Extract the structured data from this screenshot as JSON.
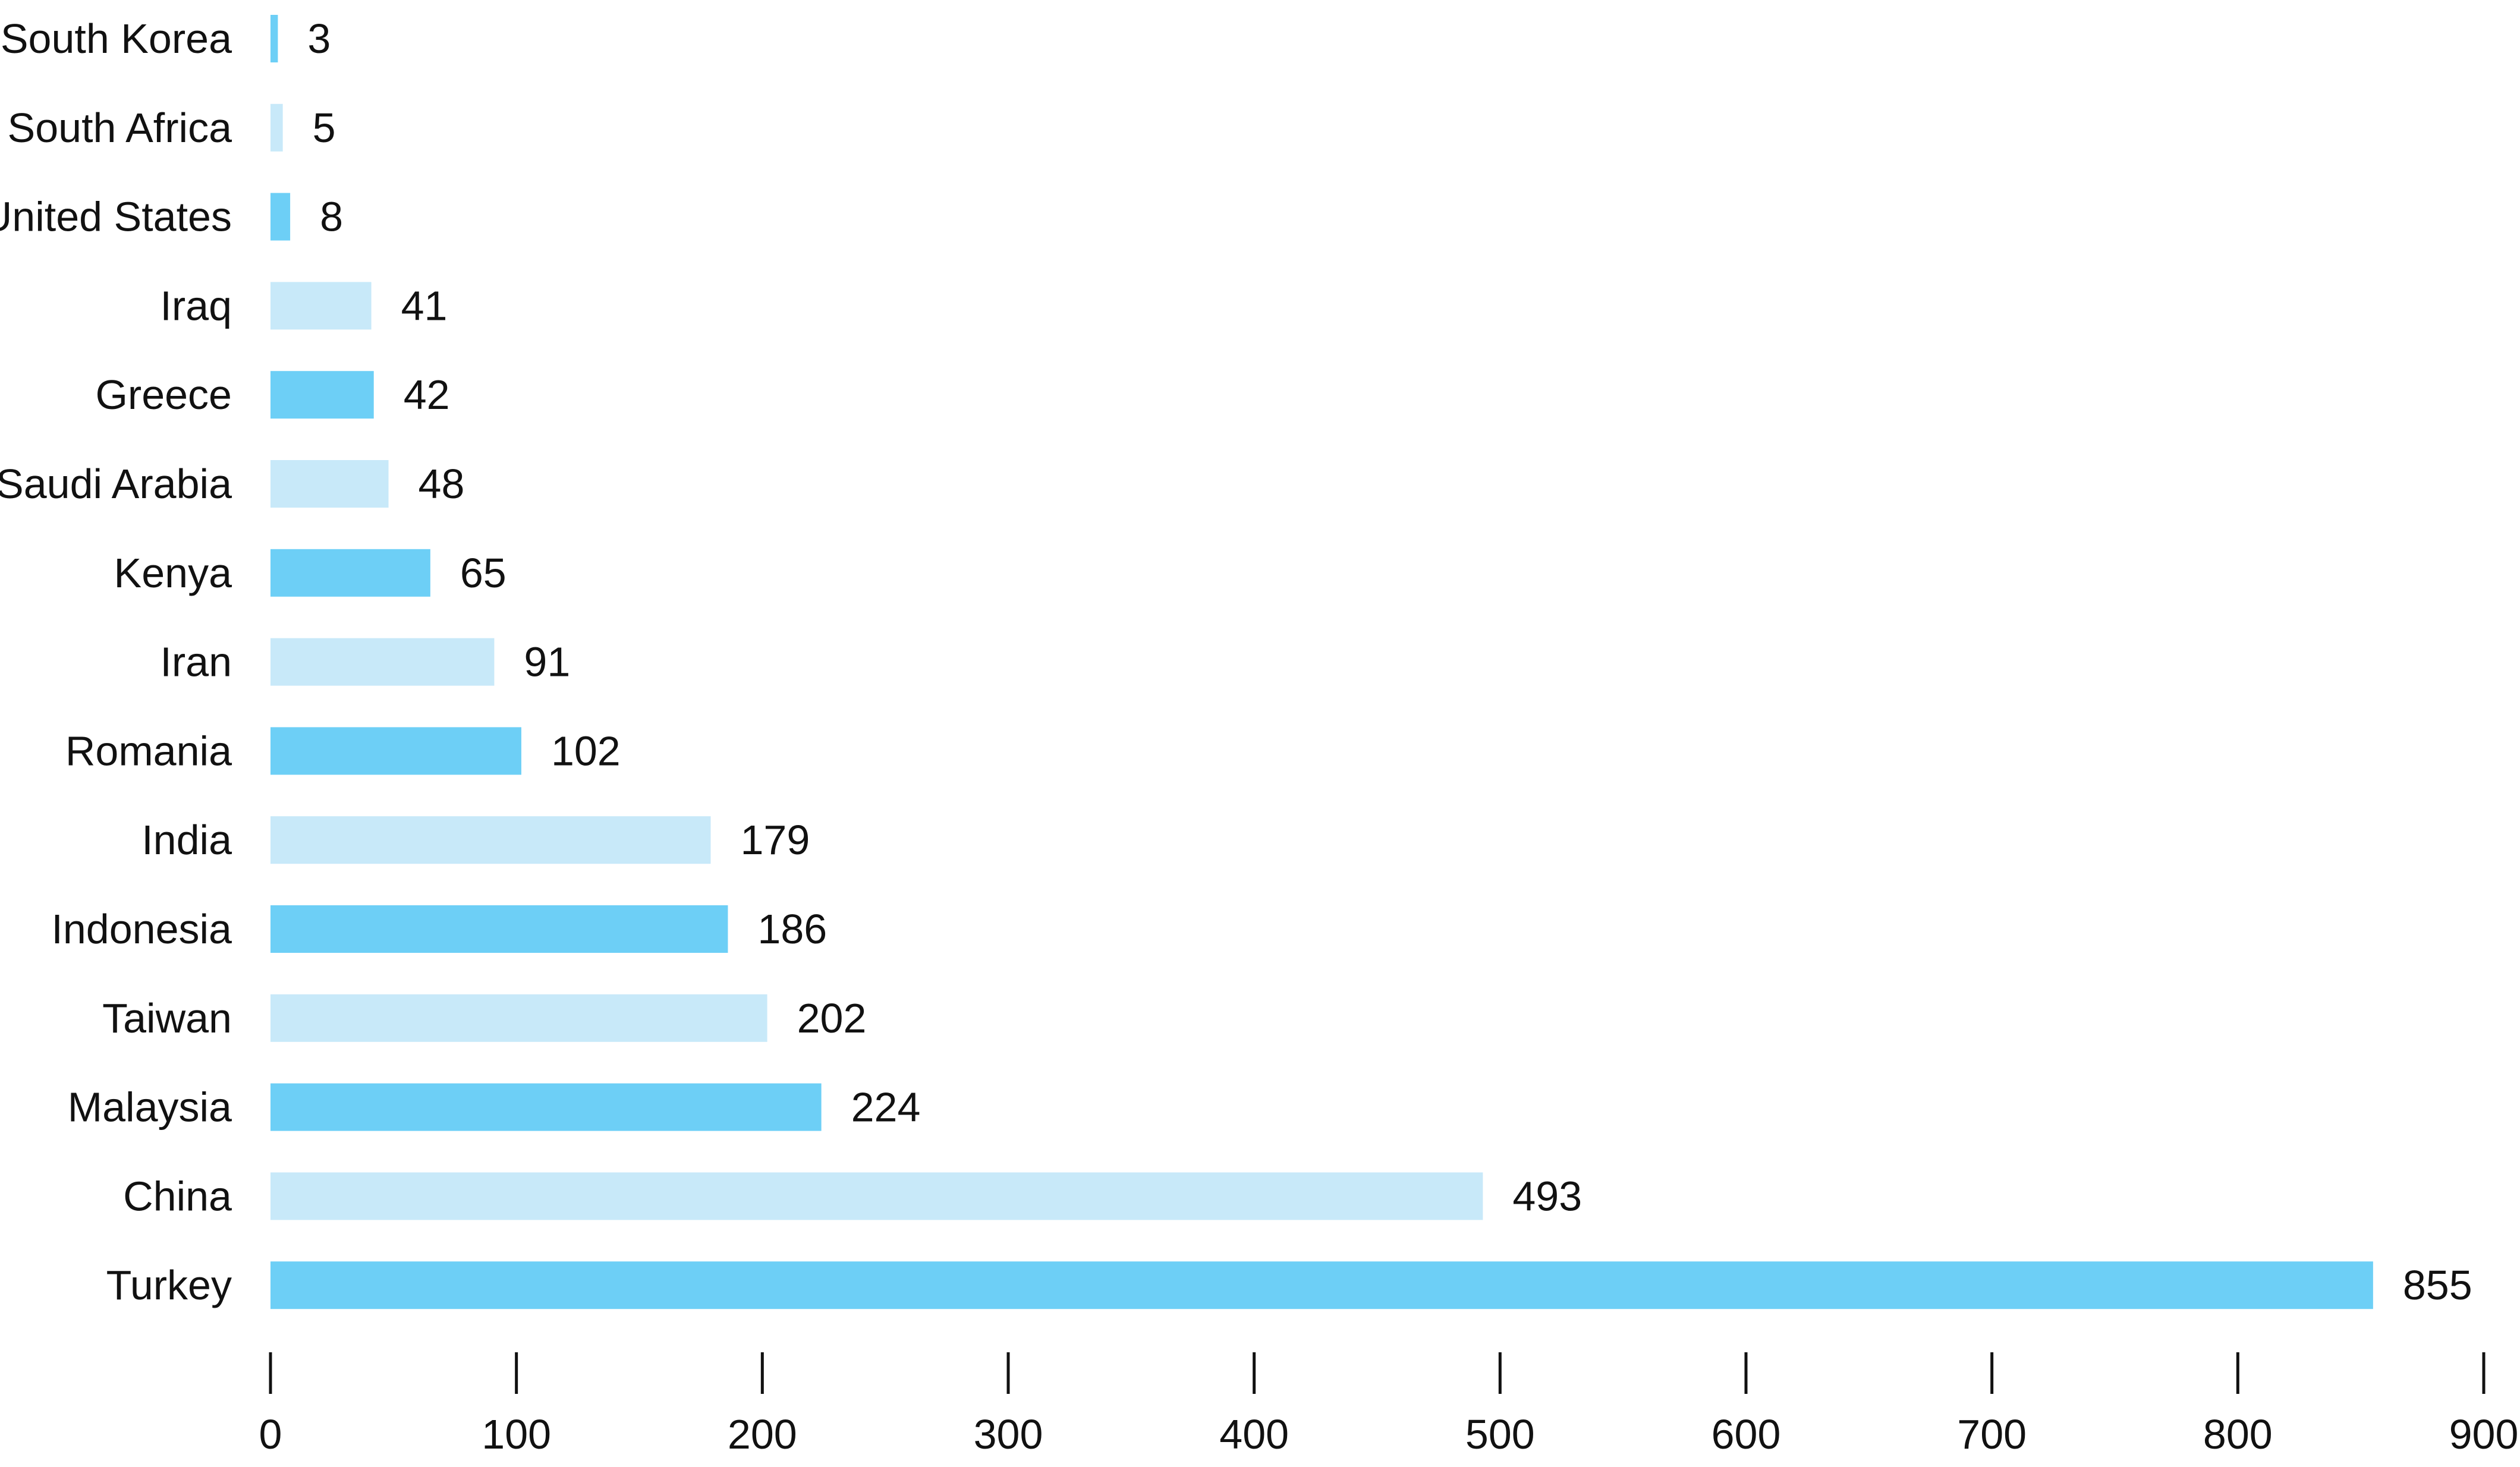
{
  "chart_data": {
    "type": "bar",
    "orientation": "horizontal",
    "categories": [
      "South Korea",
      "South Africa",
      "United States",
      "Iraq",
      "Greece",
      "Saudi Arabia",
      "Kenya",
      "Iran",
      "Romania",
      "India",
      "Indonesia",
      "Taiwan",
      "Malaysia",
      "China",
      "Turkey"
    ],
    "values": [
      3,
      5,
      8,
      41,
      42,
      48,
      65,
      91,
      102,
      179,
      186,
      202,
      224,
      493,
      855
    ],
    "data_labels": [
      "3",
      "5",
      "8",
      "41",
      "42",
      "48",
      "65",
      "91",
      "102",
      "179",
      "186",
      "202",
      "224",
      "493",
      "855"
    ],
    "xlim": [
      0,
      900
    ],
    "x_ticks": [
      0,
      100,
      200,
      300,
      400,
      500,
      600,
      700,
      800,
      900
    ],
    "x_tick_labels": [
      "0",
      "100",
      "200",
      "300",
      "400",
      "500",
      "600",
      "700",
      "800",
      "900"
    ],
    "title": "",
    "xlabel": "",
    "ylabel": "",
    "grid": false,
    "legend": "none",
    "colors": {
      "bar_dark": "#6dcff6",
      "bar_light": "#c8e9f9",
      "text": "#111111",
      "axis": "#111111"
    }
  }
}
